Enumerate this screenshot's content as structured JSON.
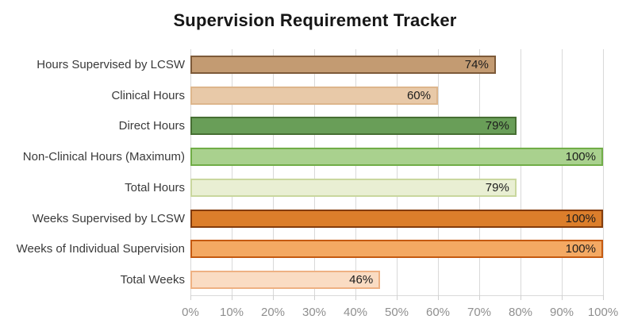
{
  "title": "Supervision Requirement Tracker",
  "chart_data": {
    "type": "bar",
    "orientation": "horizontal",
    "title": "Supervision Requirement Tracker",
    "categories": [
      "Hours Supervised by LCSW",
      "Clinical Hours",
      "Direct Hours",
      "Non-Clinical Hours (Maximum)",
      "Total Hours",
      "Weeks Supervised by LCSW",
      "Weeks of Individual Supervision",
      "Total Weeks"
    ],
    "values": [
      74,
      60,
      79,
      100,
      79,
      100,
      100,
      46
    ],
    "value_labels": [
      "74%",
      "60%",
      "79%",
      "100%",
      "79%",
      "100%",
      "100%",
      "46%"
    ],
    "bar_colors": [
      {
        "fill": "#c39b72",
        "border": "#7d5a39"
      },
      {
        "fill": "#e8c9a8",
        "border": "#ddb68c"
      },
      {
        "fill": "#699e58",
        "border": "#476f33"
      },
      {
        "fill": "#a9d18e",
        "border": "#70ad47"
      },
      {
        "fill": "#e9efd3",
        "border": "#c9d79e"
      },
      {
        "fill": "#dc7e2b",
        "border": "#843c0c"
      },
      {
        "fill": "#f4a963",
        "border": "#c55a11"
      },
      {
        "fill": "#fadcc3",
        "border": "#eeb183"
      }
    ],
    "xlabel": "",
    "ylabel": "",
    "xlim": [
      0,
      100
    ],
    "x_ticks": [
      "0%",
      "10%",
      "20%",
      "30%",
      "40%",
      "50%",
      "60%",
      "70%",
      "80%",
      "90%",
      "100%"
    ],
    "grid": "vertical",
    "legend": "none",
    "background_color": "#ffffff",
    "gridline_color": "#d9d9d9",
    "axis_text_color": "#8f8f8f",
    "title_color": "#161616",
    "category_label_color": "#3a3a3a",
    "value_label_color": "#1c1c1c"
  }
}
